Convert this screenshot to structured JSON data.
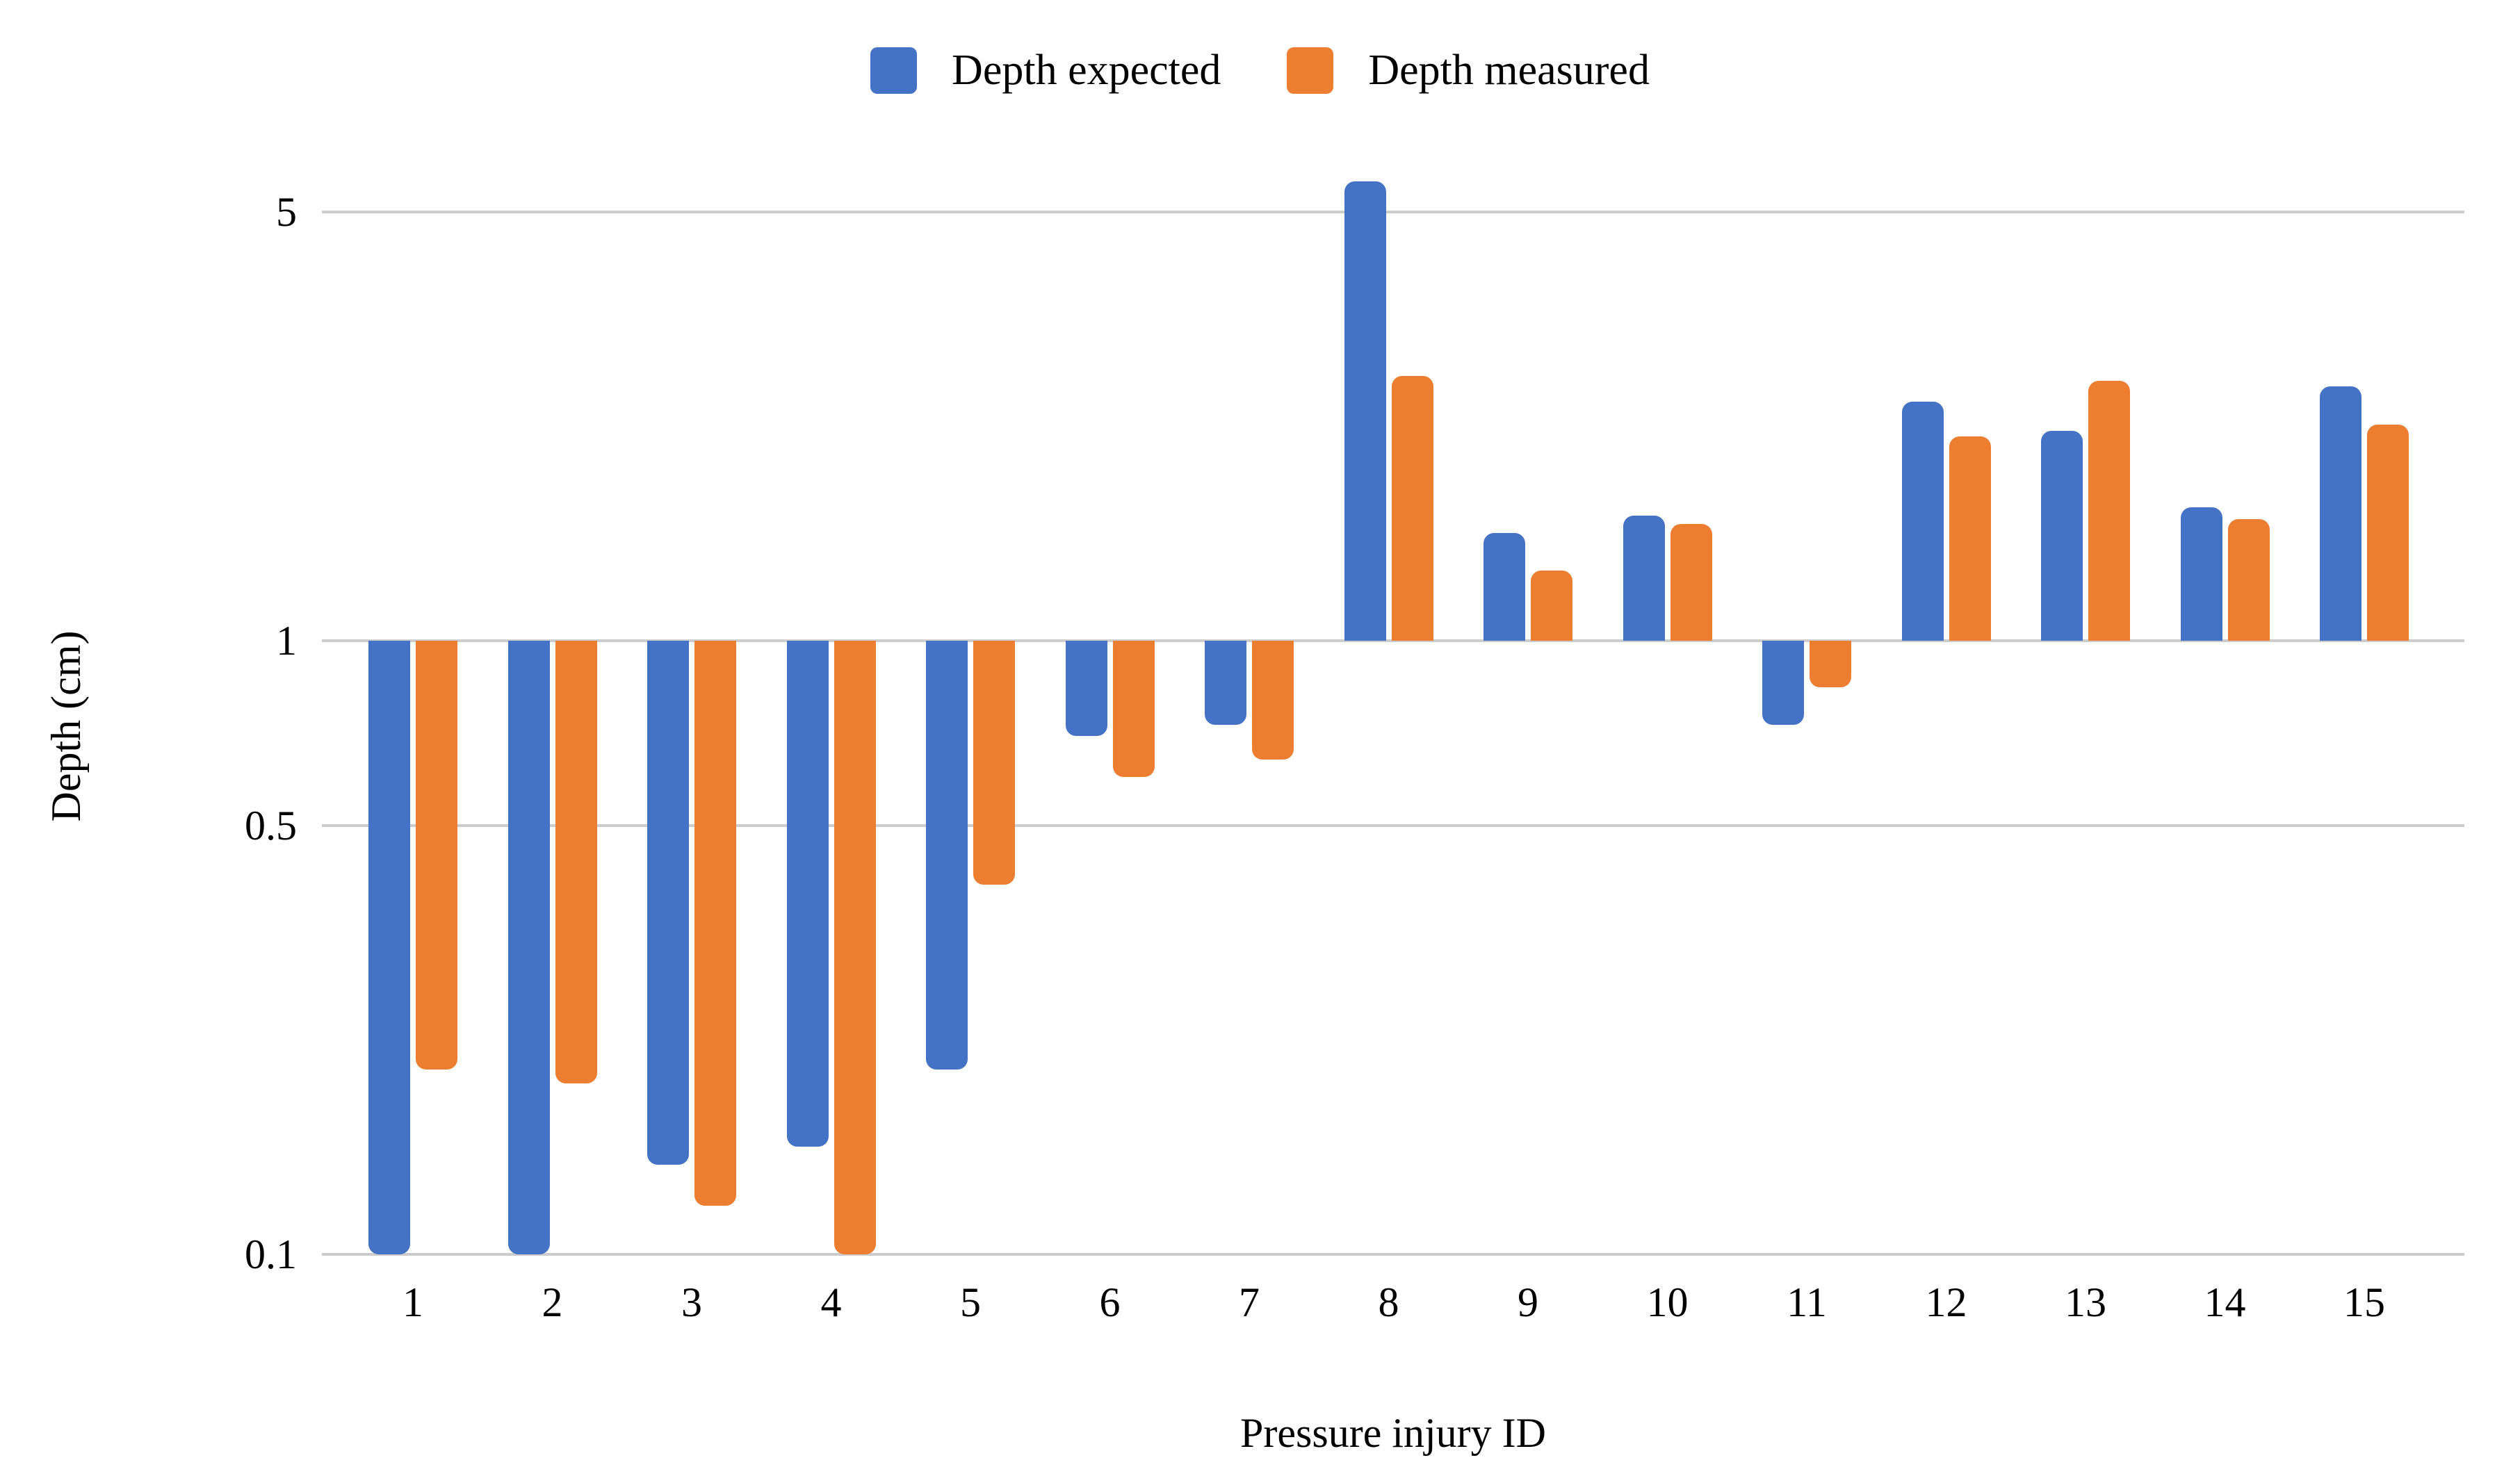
{
  "page": {
    "background": "#ffffff"
  },
  "legend": {
    "items": [
      {
        "label": "Depth expected",
        "color": "#4472c4"
      },
      {
        "label": "Depth measured",
        "color": "#ed7d31"
      }
    ]
  },
  "y_axis": {
    "title": "Depth (cm)",
    "tick_labels": [
      "5",
      "1",
      "0.5",
      "0.1"
    ],
    "tick_values": [
      5,
      1,
      0.5,
      0.1
    ]
  },
  "x_axis": {
    "title": "Pressure injury ID",
    "tick_labels": [
      "1",
      "2",
      "3",
      "4",
      "5",
      "6",
      "7",
      "8",
      "9",
      "10",
      "11",
      "12",
      "13",
      "14",
      "15"
    ]
  },
  "colors": {
    "series_expected": "#4472c4",
    "series_measured": "#ed7d31",
    "gridline": "#cccccc",
    "text": "#000000"
  },
  "chart_data": {
    "type": "bar",
    "title": "",
    "xlabel": "Pressure injury ID",
    "ylabel": "Depth (cm)",
    "y_scale": "log",
    "baseline": 1,
    "ylim": [
      0.095,
      6.0
    ],
    "yticks": [
      5,
      1,
      0.5,
      0.1
    ],
    "grid": true,
    "legend_position": "top",
    "categories": [
      "1",
      "2",
      "3",
      "4",
      "5",
      "6",
      "7",
      "8",
      "9",
      "10",
      "11",
      "12",
      "13",
      "14",
      "15"
    ],
    "series": [
      {
        "name": "Depth expected",
        "color": "#4472c4",
        "values": [
          0.1,
          0.1,
          0.14,
          0.15,
          0.2,
          0.7,
          0.73,
          5.6,
          1.5,
          1.6,
          0.73,
          2.45,
          2.2,
          1.65,
          2.6
        ]
      },
      {
        "name": "Depth measured",
        "color": "#ed7d31",
        "values": [
          0.2,
          0.19,
          0.12,
          0.1,
          0.4,
          0.6,
          0.64,
          2.7,
          1.3,
          1.55,
          0.84,
          2.15,
          2.65,
          1.58,
          2.25
        ]
      }
    ]
  }
}
